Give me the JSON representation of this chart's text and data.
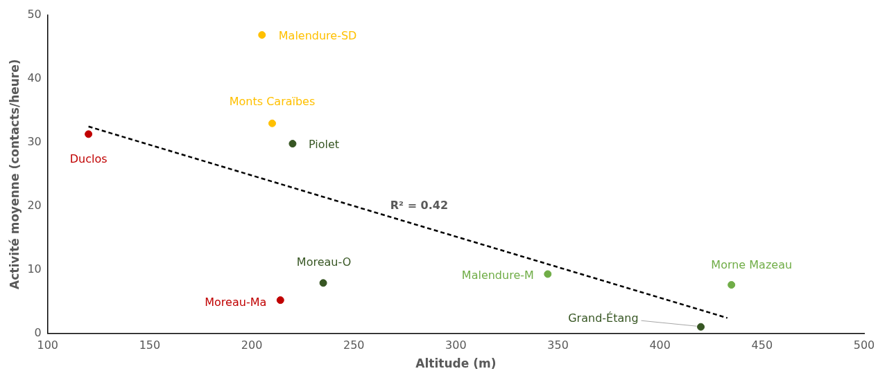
{
  "chart_data": {
    "type": "scatter",
    "xlabel": "Altitude (m)",
    "ylabel": "Activité moyenne (contacts/heure)",
    "xlim": [
      100,
      500
    ],
    "xticks": [
      100,
      150,
      200,
      250,
      300,
      350,
      400,
      450,
      500
    ],
    "ylim": [
      0,
      50
    ],
    "yticks": [
      0,
      10,
      20,
      30,
      40,
      50
    ],
    "grid": false,
    "legend": false,
    "marker": "circle",
    "series": [
      {
        "name": "Duclos",
        "color": "#c00000",
        "x": [
          120
        ],
        "values": [
          31.3
        ]
      },
      {
        "name": "Malendure-SD",
        "color": "#ffc000",
        "x": [
          205
        ],
        "values": [
          46.9
        ]
      },
      {
        "name": "Monts Caraïbes",
        "color": "#ffc000",
        "x": [
          210
        ],
        "values": [
          33.0
        ]
      },
      {
        "name": "Piolet",
        "color": "#375623",
        "x": [
          220
        ],
        "values": [
          29.8
        ]
      },
      {
        "name": "Moreau-O",
        "color": "#375623",
        "x": [
          235
        ],
        "values": [
          7.9
        ]
      },
      {
        "name": "Moreau-Ma",
        "color": "#c00000",
        "x": [
          214
        ],
        "values": [
          5.2
        ]
      },
      {
        "name": "Malendure-M",
        "color": "#70ad47",
        "x": [
          345
        ],
        "values": [
          9.3
        ]
      },
      {
        "name": "Morne Mazeau",
        "color": "#70ad47",
        "x": [
          435
        ],
        "values": [
          7.6
        ]
      },
      {
        "name": "Grand-Étang",
        "color": "#375623",
        "x": [
          420
        ],
        "values": [
          1.0
        ]
      },
      {
        "type": "line",
        "color": "#000000",
        "line_style": "dashed",
        "marker": "none",
        "x": [
          120,
          433
        ],
        "values": [
          32.5,
          2.4
        ]
      }
    ],
    "annotations": [
      "R² = 0.42"
    ]
  }
}
